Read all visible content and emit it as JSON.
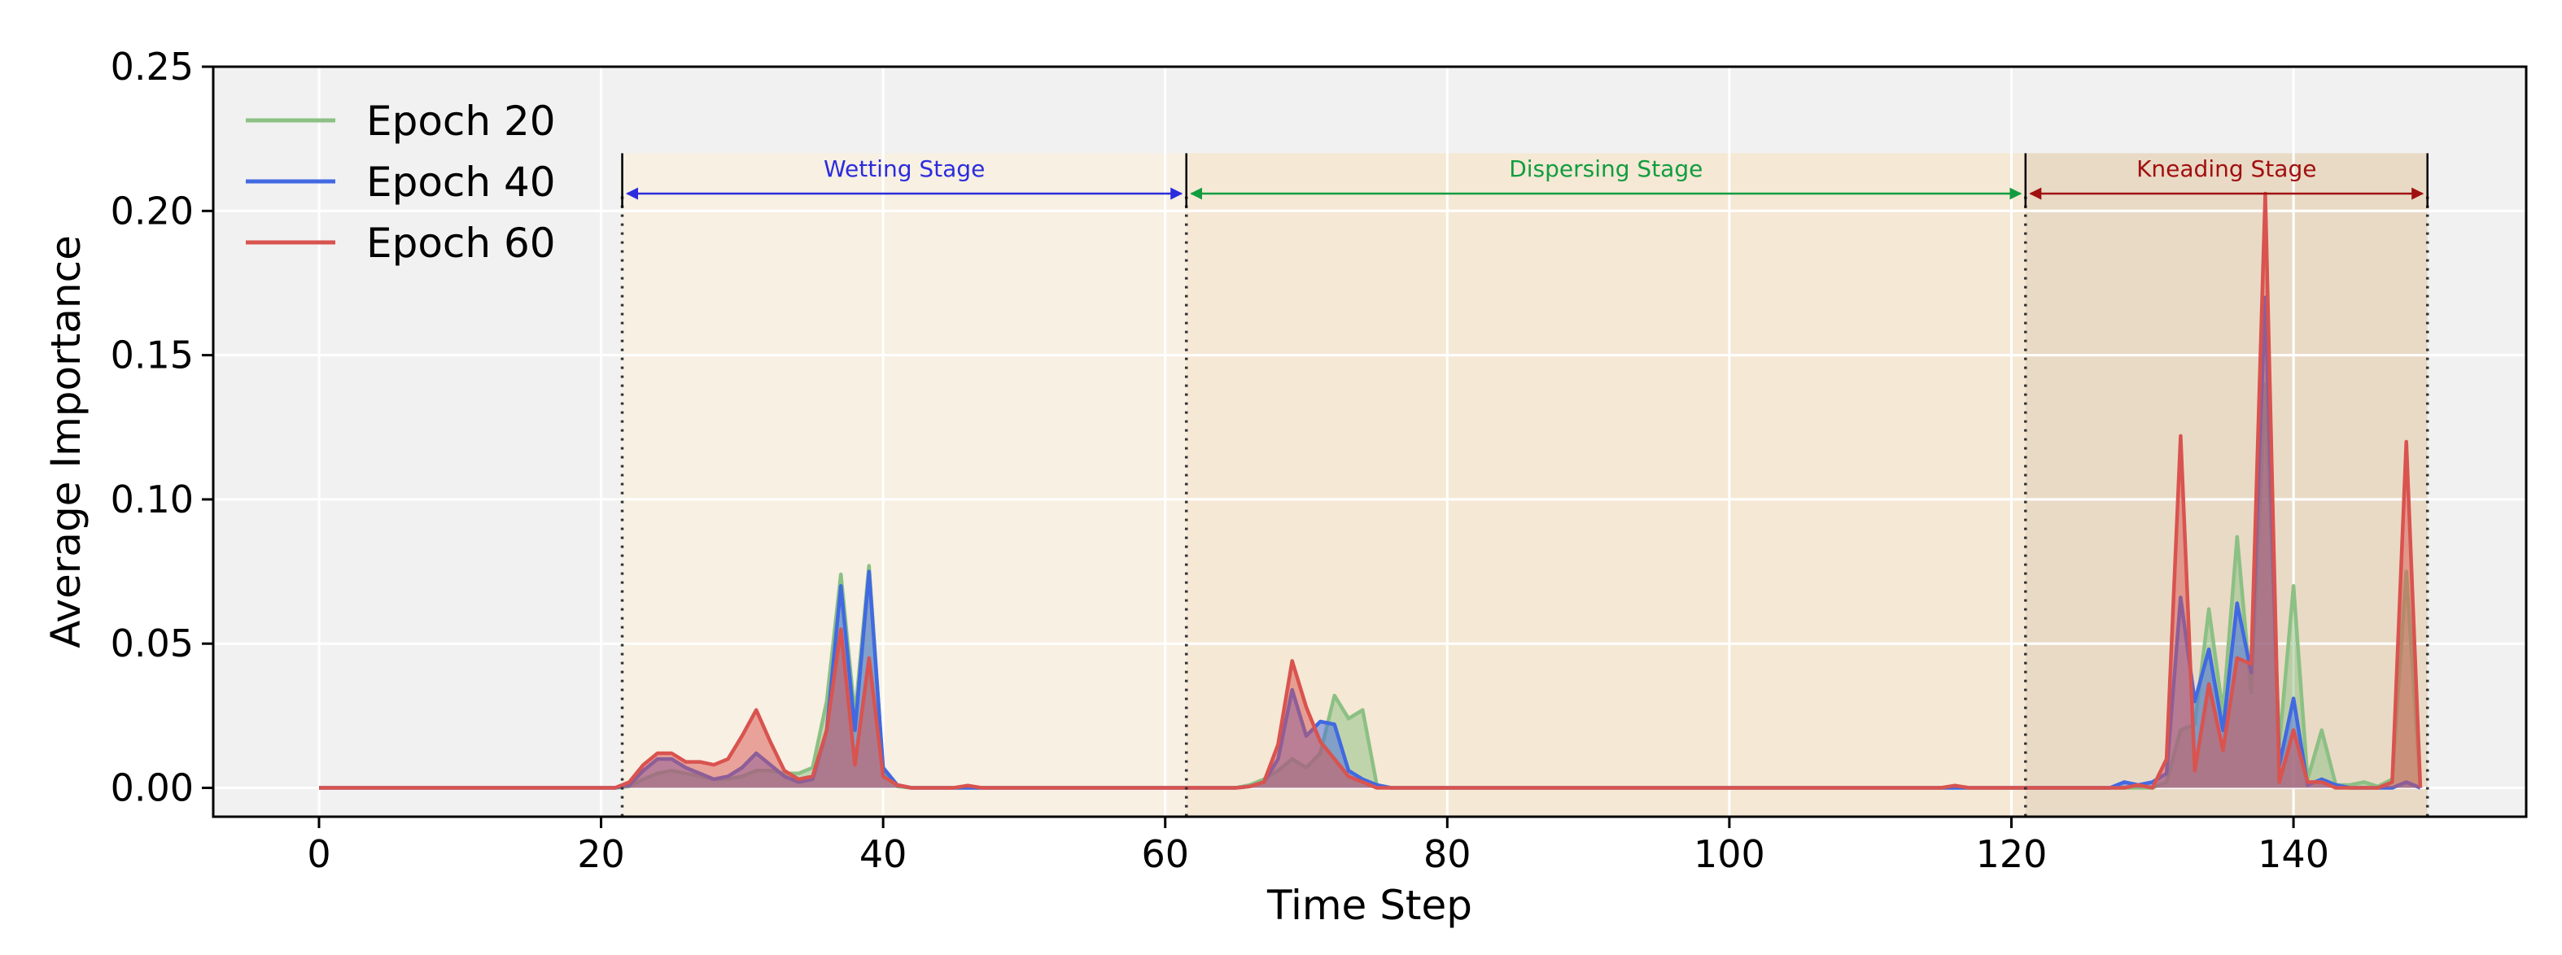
{
  "chart_data": {
    "type": "area",
    "title": "",
    "xlabel": "Time Step",
    "ylabel": "Average Importance",
    "xlim": [
      -7.5,
      156.5
    ],
    "ylim": [
      -0.01,
      0.25
    ],
    "xticks": [
      0,
      20,
      40,
      60,
      80,
      100,
      120,
      140
    ],
    "xtick_labels": [
      "0",
      "20",
      "40",
      "60",
      "80",
      "100",
      "120",
      "140"
    ],
    "yticks": [
      0,
      0.05,
      0.1,
      0.15,
      0.2,
      0.25
    ],
    "ytick_labels": [
      "0.00",
      "0.05",
      "0.10",
      "0.15",
      "0.20",
      "0.25"
    ],
    "grid": true,
    "legend_position": "top-left",
    "stages": [
      {
        "name": "Wetting Stage",
        "start": 21.5,
        "end": 61.5,
        "color": "#2c2cdc",
        "fill": "#f7f0e3"
      },
      {
        "name": "Dispersing Stage",
        "start": 61.5,
        "end": 121,
        "color": "#119d3f",
        "fill": "#f5e8d5"
      },
      {
        "name": "Kneading Stage",
        "start": 121,
        "end": 149.5,
        "color": "#a11010",
        "fill": "#e9dac6"
      }
    ],
    "series": [
      {
        "name": "Epoch 20",
        "color": "#8cc084",
        "points": [
          [
            0,
            0
          ],
          [
            21,
            0
          ],
          [
            22,
            0.0005
          ],
          [
            23,
            0.003
          ],
          [
            24,
            0.005
          ],
          [
            25,
            0.006
          ],
          [
            26,
            0.005
          ],
          [
            27,
            0.004
          ],
          [
            28,
            0.003
          ],
          [
            29,
            0.003
          ],
          [
            30,
            0.004
          ],
          [
            31,
            0.006
          ],
          [
            32,
            0.006
          ],
          [
            33,
            0.005
          ],
          [
            34,
            0.005
          ],
          [
            35,
            0.007
          ],
          [
            36,
            0.03
          ],
          [
            37,
            0.074
          ],
          [
            38,
            0.025
          ],
          [
            39,
            0.077
          ],
          [
            40,
            0.006
          ],
          [
            41,
            0.0005
          ],
          [
            42,
            0
          ],
          [
            65,
            0
          ],
          [
            66,
            0.001
          ],
          [
            67,
            0.003
          ],
          [
            68,
            0.006
          ],
          [
            69,
            0.01
          ],
          [
            70,
            0.007
          ],
          [
            71,
            0.012
          ],
          [
            72,
            0.032
          ],
          [
            73,
            0.024
          ],
          [
            74,
            0.027
          ],
          [
            75,
            0.001
          ],
          [
            76,
            0
          ],
          [
            130,
            0
          ],
          [
            131,
            0.002
          ],
          [
            132,
            0.02
          ],
          [
            133,
            0.022
          ],
          [
            134,
            0.062
          ],
          [
            135,
            0.026
          ],
          [
            136,
            0.087
          ],
          [
            137,
            0.033
          ],
          [
            138,
            0.14
          ],
          [
            139,
            0.015
          ],
          [
            140,
            0.07
          ],
          [
            141,
            0.003
          ],
          [
            142,
            0.02
          ],
          [
            143,
            0.001
          ],
          [
            144,
            0.001
          ],
          [
            145,
            0.002
          ],
          [
            146,
            0.0005
          ],
          [
            147,
            0.003
          ],
          [
            148,
            0.075
          ],
          [
            149,
            0
          ]
        ]
      },
      {
        "name": "Epoch 40",
        "color": "#4169e1",
        "points": [
          [
            0,
            0
          ],
          [
            21,
            0
          ],
          [
            22,
            0.001
          ],
          [
            23,
            0.006
          ],
          [
            24,
            0.01
          ],
          [
            25,
            0.01
          ],
          [
            26,
            0.007
          ],
          [
            27,
            0.005
          ],
          [
            28,
            0.003
          ],
          [
            29,
            0.004
          ],
          [
            30,
            0.007
          ],
          [
            31,
            0.012
          ],
          [
            32,
            0.008
          ],
          [
            33,
            0.004
          ],
          [
            34,
            0.002
          ],
          [
            35,
            0.003
          ],
          [
            36,
            0.02
          ],
          [
            37,
            0.07
          ],
          [
            38,
            0.02
          ],
          [
            39,
            0.075
          ],
          [
            40,
            0.007
          ],
          [
            41,
            0.001
          ],
          [
            42,
            0
          ],
          [
            65,
            0
          ],
          [
            66,
            0.0005
          ],
          [
            67,
            0.002
          ],
          [
            68,
            0.01
          ],
          [
            69,
            0.034
          ],
          [
            70,
            0.018
          ],
          [
            71,
            0.023
          ],
          [
            72,
            0.022
          ],
          [
            73,
            0.006
          ],
          [
            74,
            0.003
          ],
          [
            75,
            0.001
          ],
          [
            76,
            0
          ],
          [
            127,
            0
          ],
          [
            128,
            0.002
          ],
          [
            129,
            0.001
          ],
          [
            130,
            0.002
          ],
          [
            131,
            0.005
          ],
          [
            132,
            0.066
          ],
          [
            133,
            0.03
          ],
          [
            134,
            0.048
          ],
          [
            135,
            0.02
          ],
          [
            136,
            0.064
          ],
          [
            137,
            0.04
          ],
          [
            138,
            0.17
          ],
          [
            139,
            0.008
          ],
          [
            140,
            0.031
          ],
          [
            141,
            0.001
          ],
          [
            142,
            0.003
          ],
          [
            143,
            0.001
          ],
          [
            144,
            0
          ],
          [
            147,
            0
          ],
          [
            148,
            0.002
          ],
          [
            149,
            0
          ]
        ]
      },
      {
        "name": "Epoch 60",
        "color": "#d9534f",
        "points": [
          [
            0,
            0
          ],
          [
            21,
            0
          ],
          [
            22,
            0.002
          ],
          [
            23,
            0.008
          ],
          [
            24,
            0.012
          ],
          [
            25,
            0.012
          ],
          [
            26,
            0.009
          ],
          [
            27,
            0.009
          ],
          [
            28,
            0.008
          ],
          [
            29,
            0.01
          ],
          [
            30,
            0.018
          ],
          [
            31,
            0.027
          ],
          [
            32,
            0.016
          ],
          [
            33,
            0.006
          ],
          [
            34,
            0.003
          ],
          [
            35,
            0.004
          ],
          [
            36,
            0.02
          ],
          [
            37,
            0.055
          ],
          [
            38,
            0.008
          ],
          [
            39,
            0.045
          ],
          [
            40,
            0.004
          ],
          [
            41,
            0.001
          ],
          [
            42,
            0
          ],
          [
            45,
            0
          ],
          [
            46,
            0.0008
          ],
          [
            47,
            0
          ],
          [
            65,
            0
          ],
          [
            66,
            0.0005
          ],
          [
            67,
            0.002
          ],
          [
            68,
            0.015
          ],
          [
            69,
            0.044
          ],
          [
            70,
            0.028
          ],
          [
            71,
            0.016
          ],
          [
            72,
            0.01
          ],
          [
            73,
            0.004
          ],
          [
            74,
            0.002
          ],
          [
            75,
            0
          ],
          [
            115,
            0
          ],
          [
            116,
            0.0008
          ],
          [
            117,
            0
          ],
          [
            128,
            0
          ],
          [
            129,
            0.001
          ],
          [
            130,
            0
          ],
          [
            131,
            0.01
          ],
          [
            132,
            0.122
          ],
          [
            133,
            0.006
          ],
          [
            134,
            0.036
          ],
          [
            135,
            0.013
          ],
          [
            136,
            0.045
          ],
          [
            137,
            0.043
          ],
          [
            138,
            0.206
          ],
          [
            139,
            0.002
          ],
          [
            140,
            0.02
          ],
          [
            141,
            0.002
          ],
          [
            142,
            0.002
          ],
          [
            143,
            0
          ],
          [
            146,
            0
          ],
          [
            147,
            0.002
          ],
          [
            148,
            0.12
          ],
          [
            149,
            0
          ]
        ]
      }
    ]
  }
}
